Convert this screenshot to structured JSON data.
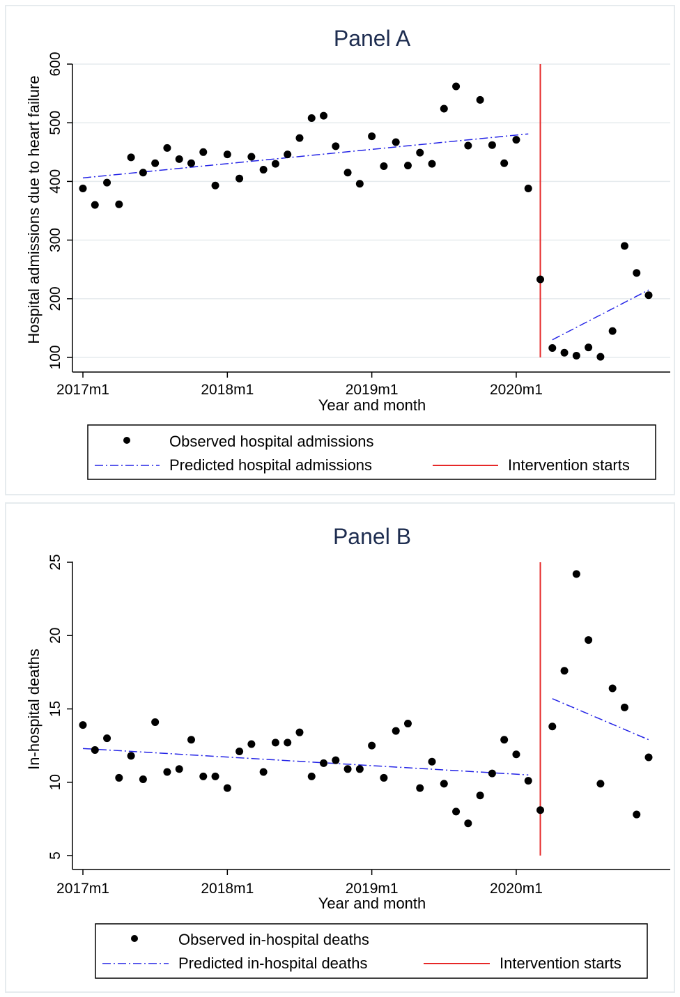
{
  "chart_data": [
    {
      "type": "scatter",
      "title": "Panel A",
      "xlabel": "Year and month",
      "ylabel": "Hospital admissions due to heart failure",
      "xticks": [
        "2017m1",
        "2018m1",
        "2019m1",
        "2020m1"
      ],
      "xrange": [
        0,
        47
      ],
      "ylim": [
        100,
        600
      ],
      "yticks": [
        100,
        200,
        300,
        400,
        500,
        600
      ],
      "grid": true,
      "legend_position": "bottom",
      "intervention_month": 38,
      "series": [
        {
          "name": "Observed hospital admissions",
          "kind": "points",
          "color": "#000000",
          "x": [
            0,
            1,
            2,
            3,
            4,
            5,
            6,
            7,
            8,
            9,
            10,
            11,
            12,
            13,
            14,
            15,
            16,
            17,
            18,
            19,
            20,
            21,
            22,
            23,
            24,
            25,
            26,
            27,
            28,
            29,
            30,
            31,
            32,
            33,
            34,
            35,
            36,
            37,
            38,
            39,
            40,
            41,
            42,
            43,
            44,
            45,
            46,
            47
          ],
          "y": [
            388,
            360,
            398,
            361,
            441,
            415,
            431,
            457,
            438,
            431,
            450,
            393,
            446,
            405,
            442,
            420,
            430,
            446,
            474,
            508,
            512,
            460,
            415,
            396,
            477,
            426,
            467,
            427,
            449,
            430,
            524,
            562,
            461,
            539,
            462,
            431,
            471,
            388,
            233,
            116,
            108,
            103,
            117,
            101,
            145,
            290,
            244,
            206
          ]
        },
        {
          "name": "Predicted hospital admissions",
          "kind": "line",
          "color": "#2323e6",
          "dash": "dash-dot",
          "segments": [
            {
              "x": [
                0,
                37
              ],
              "y": [
                406,
                481
              ]
            },
            {
              "x": [
                39,
                47
              ],
              "y": [
                130,
                215
              ]
            }
          ]
        },
        {
          "name": "Intervention starts",
          "kind": "vline",
          "color": "#e62828",
          "x": 38
        }
      ]
    },
    {
      "type": "scatter",
      "title": "Panel B",
      "xlabel": "Year and month",
      "ylabel": "In-hospital deaths",
      "xticks": [
        "2017m1",
        "2018m1",
        "2019m1",
        "2020m1"
      ],
      "xrange": [
        0,
        47
      ],
      "ylim": [
        5,
        25
      ],
      "yticks": [
        5,
        10,
        15,
        20,
        25
      ],
      "grid": false,
      "legend_position": "bottom",
      "intervention_month": 38,
      "series": [
        {
          "name": "Observed in-hospital deaths",
          "kind": "points",
          "color": "#000000",
          "x": [
            0,
            1,
            2,
            3,
            4,
            5,
            6,
            7,
            8,
            9,
            10,
            11,
            12,
            13,
            14,
            15,
            16,
            17,
            18,
            19,
            20,
            21,
            22,
            23,
            24,
            25,
            26,
            27,
            28,
            29,
            30,
            31,
            32,
            33,
            34,
            35,
            36,
            37,
            38,
            39,
            40,
            41,
            42,
            43,
            44,
            45,
            46,
            47
          ],
          "y": [
            13.9,
            12.2,
            13.0,
            10.3,
            11.8,
            10.2,
            14.1,
            10.7,
            10.9,
            12.9,
            10.4,
            10.4,
            9.6,
            12.1,
            12.6,
            10.7,
            12.7,
            12.7,
            13.4,
            10.4,
            11.3,
            11.5,
            10.9,
            10.9,
            12.5,
            10.3,
            13.5,
            14.0,
            9.6,
            11.4,
            9.9,
            8.0,
            7.2,
            9.1,
            10.6,
            12.9,
            11.9,
            10.1,
            8.1,
            13.8,
            17.6,
            24.2,
            19.7,
            9.9,
            16.4,
            15.1,
            7.8,
            11.7
          ]
        },
        {
          "name": "Predicted in-hospital deaths",
          "kind": "line",
          "color": "#2323e6",
          "dash": "dash-dot",
          "segments": [
            {
              "x": [
                0,
                37
              ],
              "y": [
                12.3,
                10.5
              ]
            },
            {
              "x": [
                39,
                47
              ],
              "y": [
                15.7,
                12.9
              ]
            }
          ]
        },
        {
          "name": "Intervention starts",
          "kind": "vline",
          "color": "#e62828",
          "x": 38
        }
      ]
    }
  ]
}
